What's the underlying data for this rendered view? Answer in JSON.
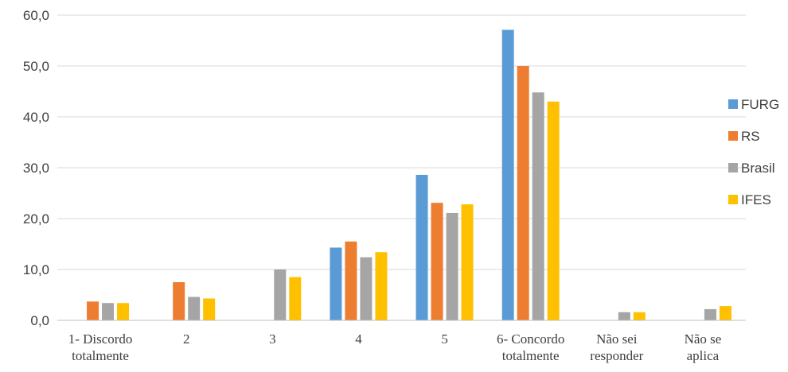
{
  "chart_data": {
    "type": "bar",
    "title": "",
    "xlabel": "",
    "ylabel": "",
    "ylim": [
      0,
      60
    ],
    "yticks": [
      "0,0",
      "10,0",
      "20,0",
      "30,0",
      "40,0",
      "50,0",
      "60,0"
    ],
    "grid": true,
    "legend_position": "right",
    "categories": [
      [
        "1- Discordo",
        "totalmente"
      ],
      [
        "2"
      ],
      [
        "3"
      ],
      [
        "4"
      ],
      [
        "5"
      ],
      [
        "6- Concordo",
        "totalmente"
      ],
      [
        "Não sei",
        "responder"
      ],
      [
        "Não se",
        "aplica"
      ]
    ],
    "series": [
      {
        "name": "FURG",
        "color": "#5B9BD5",
        "values": [
          0,
          0,
          0,
          14.3,
          28.6,
          57.1,
          0,
          0
        ]
      },
      {
        "name": "RS",
        "color": "#ED7D31",
        "values": [
          3.7,
          7.5,
          0,
          15.5,
          23.1,
          50.0,
          0,
          0
        ]
      },
      {
        "name": "Brasil",
        "color": "#A5A5A5",
        "values": [
          3.4,
          4.6,
          10.0,
          12.4,
          21.1,
          44.8,
          1.6,
          2.2
        ]
      },
      {
        "name": "IFES",
        "color": "#FFC000",
        "values": [
          3.4,
          4.3,
          8.5,
          13.4,
          22.8,
          43.0,
          1.6,
          2.8
        ]
      }
    ]
  }
}
